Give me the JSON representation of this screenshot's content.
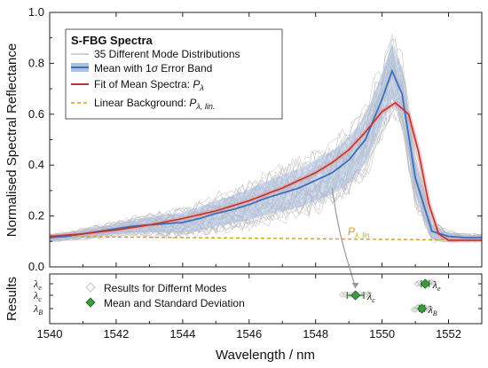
{
  "chart_data": [
    {
      "type": "line",
      "title": "",
      "xlabel": "Wavelength / nm",
      "ylabel": "Normalised Spectral Reflectance",
      "xlim": [
        1540,
        1553
      ],
      "ylim": [
        0,
        1.0
      ],
      "x_ticks": [
        1540,
        1542,
        1544,
        1546,
        1548,
        1550,
        1552
      ],
      "x_tick_labels": [
        "1540",
        "1542",
        "1544",
        "1546",
        "1548",
        "1550",
        "1552"
      ],
      "y_ticks": [
        0.0,
        0.2,
        0.4,
        0.6,
        0.8,
        1.0
      ],
      "y_tick_labels": [
        "0.0",
        "0.2",
        "0.4",
        "0.6",
        "0.8",
        "1.0"
      ],
      "grid": false,
      "legend": {
        "placement": "top-left",
        "heading": "S-FBG Spectra",
        "entries": [
          {
            "label": "35 Different Mode Distributions",
            "style": "thin-gray"
          },
          {
            "label": "Mean with 1",
            "sigma": "σ",
            "label_rest": " Error Band",
            "style": "blue-band"
          },
          {
            "label": "Fit of Mean Spectra: ",
            "symbol": "P",
            "subscript": "λ",
            "style": "red"
          },
          {
            "label": "Linear Background: ",
            "symbol": "P",
            "subscript": "λ, lin.",
            "style": "dashed-orange"
          }
        ]
      },
      "annotation": {
        "symbol": "P",
        "subscript": "λ, lin.",
        "color": "#d4a017",
        "at_x": 1549.2
      },
      "colors": {
        "modes": "#b8b8b8",
        "mean": "#3f6fb8",
        "band": "#a9c0e0",
        "fit": "#b23a2c",
        "fit_halo": "#ef9aa8",
        "background": "#d4a017",
        "arrow": "#999999"
      },
      "mode_count": 35,
      "series": [
        {
          "name": "Mean with 1σ Error Band",
          "x": [
            1540,
            1540.5,
            1541,
            1541.5,
            1542,
            1542.5,
            1543,
            1543.5,
            1544,
            1544.5,
            1545,
            1545.5,
            1546,
            1546.5,
            1547,
            1547.5,
            1548,
            1548.5,
            1549,
            1549.5,
            1550,
            1550.3,
            1550.6,
            1551,
            1551.5,
            1552,
            1552.5,
            1553
          ],
          "y": [
            0.115,
            0.12,
            0.13,
            0.14,
            0.15,
            0.16,
            0.165,
            0.17,
            0.175,
            0.19,
            0.21,
            0.225,
            0.245,
            0.27,
            0.29,
            0.31,
            0.34,
            0.37,
            0.42,
            0.5,
            0.66,
            0.77,
            0.68,
            0.35,
            0.14,
            0.12,
            0.115,
            0.115
          ],
          "band": [
            0.01,
            0.012,
            0.015,
            0.018,
            0.02,
            0.025,
            0.03,
            0.035,
            0.04,
            0.045,
            0.05,
            0.055,
            0.06,
            0.065,
            0.07,
            0.075,
            0.08,
            0.085,
            0.09,
            0.095,
            0.1,
            0.11,
            0.1,
            0.07,
            0.03,
            0.015,
            0.01,
            0.01
          ]
        },
        {
          "name": "Fit of Mean Spectra",
          "x": [
            1540,
            1541,
            1542,
            1543,
            1544,
            1545,
            1546,
            1547,
            1548,
            1548.5,
            1549,
            1549.5,
            1550,
            1550.4,
            1550.8,
            1551.1,
            1551.4,
            1551.7,
            1552,
            1552.5,
            1553
          ],
          "y": [
            0.12,
            0.13,
            0.145,
            0.165,
            0.19,
            0.22,
            0.26,
            0.31,
            0.37,
            0.41,
            0.46,
            0.53,
            0.61,
            0.645,
            0.6,
            0.45,
            0.25,
            0.13,
            0.105,
            0.105,
            0.105
          ]
        },
        {
          "name": "Linear Background",
          "x": [
            1540,
            1553
          ],
          "y": [
            0.12,
            0.105
          ]
        }
      ]
    },
    {
      "type": "scatter",
      "ylabel": "Results",
      "xlabel": "Wavelength / nm",
      "xlim": [
        1540,
        1553
      ],
      "y_tick_labels": [
        {
          "symbol": "λ",
          "subscript": "e"
        },
        {
          "symbol": "λ",
          "subscript": "c"
        },
        {
          "symbol": "λ",
          "subscript": "B"
        }
      ],
      "legend": {
        "placement": "left",
        "entries": [
          {
            "label": "Results for Differnt Modes",
            "marker": "diamond-open-gray"
          },
          {
            "label": "Mean and Standard Deviation",
            "marker": "diamond-green"
          }
        ]
      },
      "colors": {
        "mean": "#3e9a3e",
        "mean_edge": "#1f5f1f",
        "modes": "#c4c4c4",
        "errorbar": "#2f7f2f"
      },
      "points": [
        {
          "level": "c",
          "label": {
            "symbol": "λ",
            "subscript": "c"
          },
          "mean": 1549.2,
          "std": 0.25,
          "spread": [
            1548.8,
            1549.6
          ]
        },
        {
          "level": "e",
          "label": {
            "symbol": "λ",
            "subscript": "e"
          },
          "mean": 1551.3,
          "std": 0.12,
          "spread": [
            1551.05,
            1551.55
          ]
        },
        {
          "level": "B",
          "label": {
            "symbol": "λ",
            "subscript": "B"
          },
          "mean": 1551.2,
          "std": 0.08,
          "spread": [
            1550.95,
            1551.45
          ]
        }
      ]
    }
  ]
}
